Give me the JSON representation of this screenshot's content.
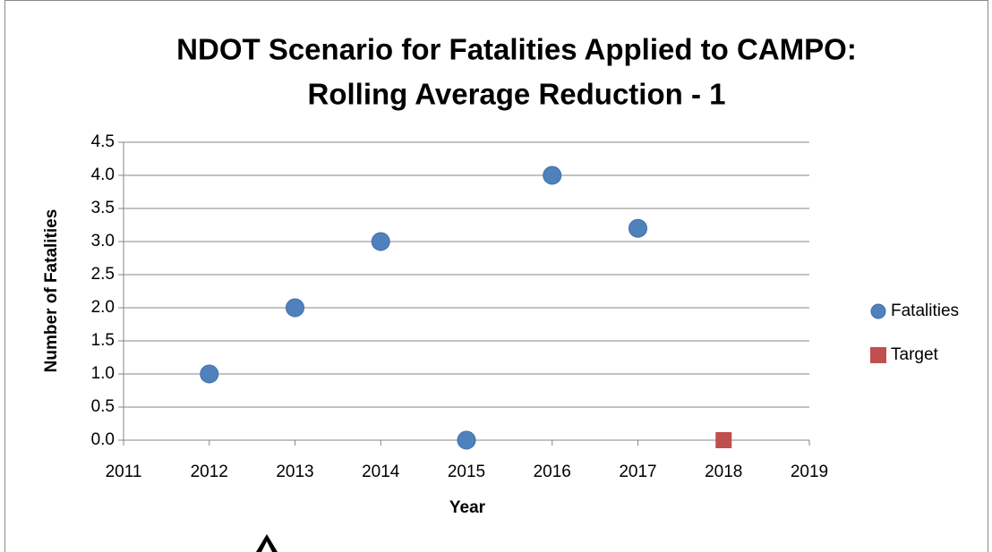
{
  "chart_data": {
    "type": "scatter",
    "title": [
      "NDOT Scenario for Fatalities Applied to CAMPO:",
      "Rolling Average Reduction - 1"
    ],
    "x_label": "Year",
    "y_label": "Number of Fatalities",
    "series": [
      {
        "name": "Fatalities",
        "color": "#4f81bd",
        "marker": "circle",
        "x": [
          2012,
          2013,
          2014,
          2015,
          2016,
          2017
        ],
        "values": [
          1,
          2,
          3,
          0,
          4,
          3.2
        ]
      },
      {
        "name": "Target",
        "color": "#c0504d",
        "marker": "square",
        "x": [
          2018
        ],
        "values": [
          0
        ]
      }
    ],
    "xlim": [
      2011,
      2019
    ],
    "xticks": [
      2011,
      2012,
      2013,
      2014,
      2015,
      2016,
      2017,
      2018,
      2019
    ],
    "ylim": [
      0,
      4.5
    ],
    "yticks": [
      {
        "value": 0,
        "label": "0.0"
      },
      0.5,
      {
        "value": 1,
        "label": "1.0"
      },
      1.5,
      {
        "value": 2,
        "label": "2.0"
      },
      2.5,
      {
        "value": 3,
        "label": "3.0"
      },
      3.5,
      {
        "value": 4,
        "label": "4.0"
      },
      4.5
    ],
    "grid": true,
    "legend": "right"
  }
}
